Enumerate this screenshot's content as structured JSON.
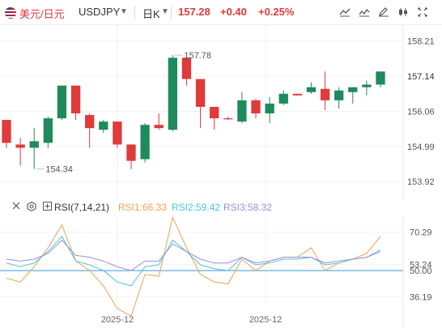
{
  "header": {
    "pair_cn": "美元/日元",
    "pair_code": "USDJPY",
    "period": "日K",
    "price": "157.28",
    "change": "+0.40",
    "change_pct": "+0.25%",
    "icons": [
      "line-tool-icon",
      "indicator-icon",
      "edit-icon",
      "candle-type-icon",
      "fullscreen-icon"
    ]
  },
  "rsi_panel": {
    "name": "RSI(7,14,21)",
    "rsi1_label": "RSI1:66.33",
    "rsi2_label": "RSI2:59.42",
    "rsi3_label": "RSI3:58.32"
  },
  "colors": {
    "up": "#e03a3a",
    "down": "#1f8a5c",
    "rsi1": "#f0a050",
    "rsi2": "#4cc3d9",
    "rsi3": "#9b8fd6",
    "baseline": "#3a9bd5"
  },
  "chart_data": [
    {
      "type": "candlestick",
      "y_ticks": [
        "158.21",
        "157.14",
        "156.06",
        "154.99",
        "153.92"
      ],
      "ylim": [
        153.6,
        158.5
      ],
      "x_tick_labels": [
        "2025-12",
        "2025-12"
      ],
      "annotations": {
        "high": "157.78",
        "low": "154.34"
      },
      "candles": [
        {
          "o": 155.8,
          "h": 155.8,
          "l": 154.95,
          "c": 155.1
        },
        {
          "o": 155.05,
          "h": 155.25,
          "l": 154.4,
          "c": 154.95
        },
        {
          "o": 154.95,
          "h": 155.55,
          "l": 154.3,
          "c": 155.15
        },
        {
          "o": 155.1,
          "h": 155.9,
          "l": 154.95,
          "c": 155.85
        },
        {
          "o": 155.85,
          "h": 156.85,
          "l": 155.8,
          "c": 156.85
        },
        {
          "o": 156.85,
          "h": 156.85,
          "l": 155.8,
          "c": 156.0
        },
        {
          "o": 155.95,
          "h": 156.0,
          "l": 154.95,
          "c": 155.55
        },
        {
          "o": 155.5,
          "h": 155.8,
          "l": 155.4,
          "c": 155.75
        },
        {
          "o": 155.75,
          "h": 155.75,
          "l": 154.95,
          "c": 155.05
        },
        {
          "o": 155.05,
          "h": 155.05,
          "l": 154.3,
          "c": 154.55
        },
        {
          "o": 154.6,
          "h": 155.7,
          "l": 154.5,
          "c": 155.65
        },
        {
          "o": 155.65,
          "h": 156.0,
          "l": 155.5,
          "c": 155.55
        },
        {
          "o": 155.5,
          "h": 157.78,
          "l": 155.45,
          "c": 157.7
        },
        {
          "o": 157.7,
          "h": 157.7,
          "l": 156.85,
          "c": 157.05
        },
        {
          "o": 157.05,
          "h": 157.05,
          "l": 155.55,
          "c": 156.2
        },
        {
          "o": 156.2,
          "h": 156.2,
          "l": 155.5,
          "c": 155.85
        },
        {
          "o": 155.85,
          "h": 155.9,
          "l": 155.8,
          "c": 155.82
        },
        {
          "o": 155.75,
          "h": 156.65,
          "l": 155.7,
          "c": 156.4
        },
        {
          "o": 156.4,
          "h": 156.45,
          "l": 155.85,
          "c": 156.0
        },
        {
          "o": 156.0,
          "h": 156.5,
          "l": 155.7,
          "c": 156.3
        },
        {
          "o": 156.3,
          "h": 156.7,
          "l": 156.25,
          "c": 156.6
        },
        {
          "o": 156.6,
          "h": 156.6,
          "l": 156.55,
          "c": 156.55
        },
        {
          "o": 156.65,
          "h": 156.95,
          "l": 156.6,
          "c": 156.8
        },
        {
          "o": 156.75,
          "h": 157.28,
          "l": 156.1,
          "c": 156.4
        },
        {
          "o": 156.4,
          "h": 156.8,
          "l": 156.15,
          "c": 156.7
        },
        {
          "o": 156.65,
          "h": 156.8,
          "l": 156.3,
          "c": 156.8
        },
        {
          "o": 156.8,
          "h": 157.0,
          "l": 156.55,
          "c": 156.88
        },
        {
          "o": 156.88,
          "h": 157.28,
          "l": 156.8,
          "c": 157.28
        }
      ]
    },
    {
      "type": "line",
      "title": "RSI(7,14,21)",
      "y_ticks": [
        "70.29",
        "53.24",
        "50.00",
        "36.19"
      ],
      "ylim": [
        33,
        79
      ],
      "reference_line": 50,
      "series": [
        {
          "name": "RSI1",
          "values": [
            46,
            44,
            52,
            62,
            74,
            55,
            50,
            42,
            30,
            26,
            48,
            47,
            78,
            62,
            48,
            44,
            43,
            56,
            50,
            55,
            57,
            57,
            62,
            50,
            54,
            56,
            59,
            68
          ]
        },
        {
          "name": "RSI2",
          "values": [
            54,
            52,
            54,
            60,
            68,
            55,
            53,
            50,
            44,
            42,
            52,
            53,
            66,
            60,
            53,
            51,
            50,
            57,
            53,
            54,
            56,
            56,
            57,
            53,
            54,
            56,
            57,
            61
          ]
        },
        {
          "name": "RSI3",
          "values": [
            56,
            55,
            56,
            59,
            66,
            58,
            57,
            55,
            52,
            50,
            55,
            55,
            64,
            60,
            56,
            54,
            54,
            57,
            54,
            55,
            57,
            57,
            57,
            54,
            55,
            56,
            57,
            60
          ]
        }
      ]
    }
  ]
}
